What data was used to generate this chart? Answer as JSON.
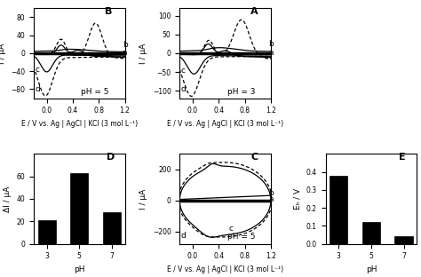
{
  "panel_B": {
    "label": "B",
    "pH": "pH = 5",
    "ylim": [
      -100,
      100
    ],
    "xlim": [
      -0.2,
      1.2
    ],
    "yticks": [
      -80,
      -40,
      0,
      40,
      80
    ],
    "xticks": [
      0,
      0.4,
      0.8,
      1.2
    ],
    "ylabel": "I / μA",
    "xlabel": "E / V vs. Ag | AgCl | KCl (3 mol L⁻¹)"
  },
  "panel_A": {
    "label": "A",
    "pH": "pH = 3",
    "ylim": [
      -120,
      120
    ],
    "xlim": [
      -0.2,
      1.2
    ],
    "yticks": [
      -100,
      -50,
      0,
      50,
      100
    ],
    "xticks": [
      0,
      0.4,
      0.8,
      1.2
    ],
    "ylabel": "I / μA",
    "xlabel": "E / V vs. Ag | AgCl | KCl (3 mol L⁻¹)"
  },
  "panel_D": {
    "label": "D",
    "categories": [
      "3",
      "5",
      "7"
    ],
    "values": [
      21,
      63,
      28
    ],
    "ylabel": "ΔI / μA",
    "xlabel": "pH",
    "ylim": [
      0,
      80
    ],
    "yticks": [
      0,
      20,
      40,
      60
    ],
    "bar_color": "#000000"
  },
  "panel_C": {
    "label": "C",
    "pH": "pH = 5",
    "ylim": [
      -280,
      300
    ],
    "xlim": [
      -0.2,
      1.2
    ],
    "yticks": [
      -200,
      0,
      200
    ],
    "xticks": [
      0,
      0.4,
      0.8,
      1.2
    ],
    "ylabel": "I / μA",
    "xlabel": "E / V vs. Ag | AgCl | KCl (3 mol L⁻¹)"
  },
  "panel_E": {
    "label": "E",
    "categories": [
      "3",
      "5",
      "7"
    ],
    "values": [
      0.38,
      0.12,
      0.04
    ],
    "ylabel": "Eₕ / V",
    "xlabel": "pH",
    "ylim": [
      0,
      0.5
    ],
    "yticks": [
      0,
      0.1,
      0.2,
      0.3,
      0.4
    ],
    "bar_color": "#000000"
  }
}
